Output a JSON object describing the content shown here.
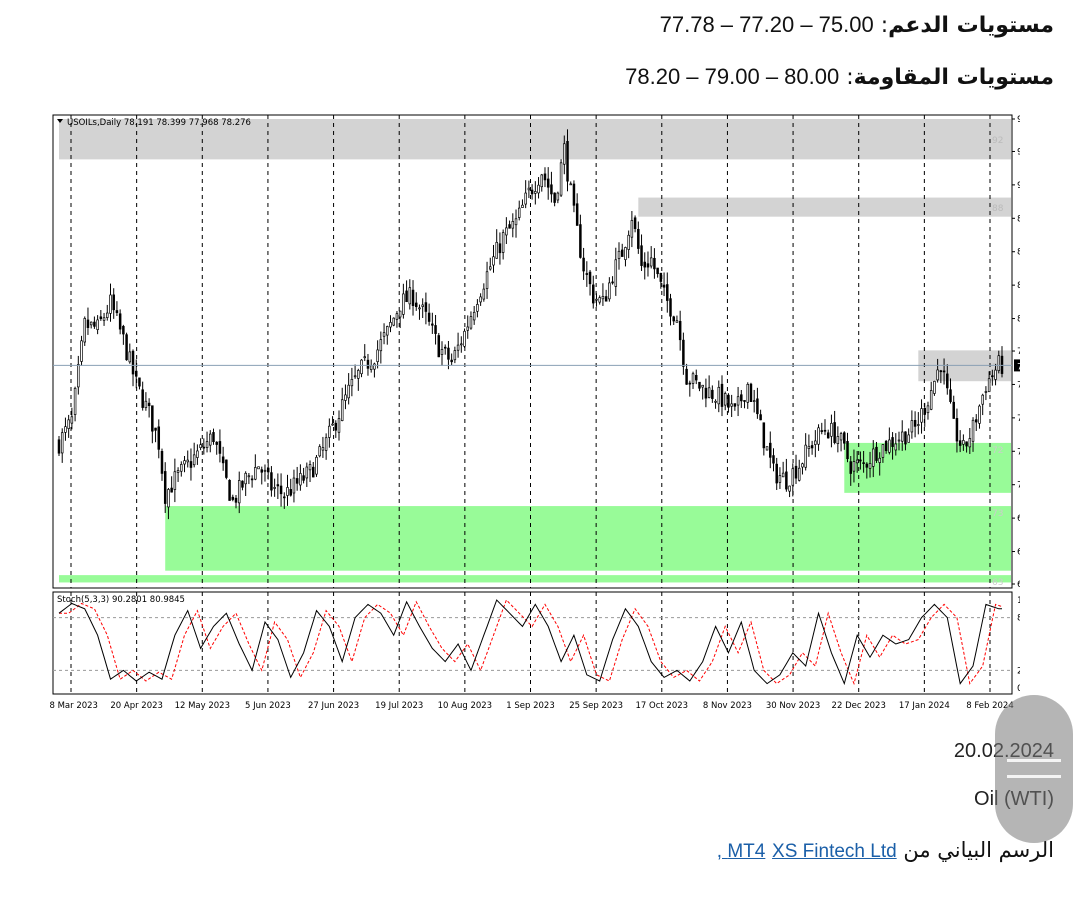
{
  "header": {
    "support_label": "مستويات الدعم",
    "support_values": "77.78 – 77.20 – 75.00",
    "resistance_label": "مستويات المقاومة",
    "resistance_values": "78.20 – 79.00 – 80.00"
  },
  "footer": {
    "date": "20.02.2024",
    "asset": "Oil (WTI)",
    "source_prefix": "الرسم البياني من",
    "source_link_1": "XS Fintech Ltd ,",
    "source_link_2": "MT4"
  },
  "colors": {
    "resistance_zone": "#d3d3d3",
    "support_zone": "#98fb98",
    "candle": "#000000",
    "stoch_main": "#000000",
    "stoch_signal": "#ff0000",
    "background": "#ffffff"
  },
  "chart_data": {
    "type": "candlestick",
    "symbol_label": "USOILs,Daily",
    "ohlc_header": "78.191 78.399 77.968 78.276",
    "current_price_label": "78.276",
    "last_close": 78.276,
    "ylim": [
      63.395,
      95.05
    ],
    "yticks": [
      "95.050",
      "92.840",
      "90.565",
      "88.290",
      "86.015",
      "83.740",
      "81.465",
      "79.255",
      "76.980",
      "74.705",
      "72.430",
      "70.155",
      "67.880",
      "65.605",
      "63.395"
    ],
    "xticks": [
      "28 Mar 2023",
      "20 Apr 2023",
      "12 May 2023",
      "5 Jun 2023",
      "27 Jun 2023",
      "19 Jul 2023",
      "10 Aug 2023",
      "1 Sep 2023",
      "25 Sep 2023",
      "17 Oct 2023",
      "8 Nov 2023",
      "30 Nov 2023",
      "22 Dec 2023",
      "17 Jan 2024",
      "8 Feb 2024"
    ],
    "close_path": [
      [
        0,
        73.0
      ],
      [
        4,
        74.5
      ],
      [
        8,
        81.0
      ],
      [
        12,
        80.8
      ],
      [
        16,
        82.5
      ],
      [
        20,
        80.0
      ],
      [
        24,
        77.0
      ],
      [
        28,
        75.0
      ],
      [
        31,
        73.0
      ],
      [
        33,
        69.5
      ],
      [
        36,
        70.5
      ],
      [
        40,
        71.5
      ],
      [
        44,
        72.5
      ],
      [
        48,
        73.5
      ],
      [
        51,
        71.0
      ],
      [
        54,
        69.0
      ],
      [
        58,
        70.5
      ],
      [
        62,
        71.5
      ],
      [
        66,
        70.0
      ],
      [
        70,
        69.5
      ],
      [
        74,
        70.2
      ],
      [
        78,
        71.0
      ],
      [
        82,
        72.5
      ],
      [
        86,
        74.5
      ],
      [
        90,
        76.5
      ],
      [
        94,
        78.0
      ],
      [
        98,
        79.0
      ],
      [
        102,
        80.5
      ],
      [
        106,
        82.5
      ],
      [
        110,
        83.0
      ],
      [
        114,
        81.5
      ],
      [
        118,
        79.5
      ],
      [
        122,
        78.5
      ],
      [
        126,
        80.5
      ],
      [
        130,
        83.0
      ],
      [
        134,
        85.0
      ],
      [
        138,
        87.0
      ],
      [
        142,
        88.0
      ],
      [
        146,
        90.0
      ],
      [
        150,
        91.5
      ],
      [
        154,
        89.5
      ],
      [
        157,
        93.0
      ],
      [
        160,
        88.5
      ],
      [
        163,
        85.0
      ],
      [
        166,
        83.0
      ],
      [
        169,
        82.5
      ],
      [
        172,
        84.5
      ],
      [
        175,
        86.0
      ],
      [
        178,
        88.5
      ],
      [
        181,
        85.0
      ],
      [
        184,
        85.5
      ],
      [
        188,
        83.0
      ],
      [
        192,
        81.5
      ],
      [
        195,
        77.5
      ],
      [
        198,
        77.0
      ],
      [
        202,
        76.5
      ],
      [
        206,
        76.0
      ],
      [
        210,
        75.0
      ],
      [
        214,
        77.0
      ],
      [
        218,
        74.0
      ],
      [
        222,
        71.0
      ],
      [
        226,
        70.5
      ],
      [
        230,
        71.5
      ],
      [
        234,
        73.0
      ],
      [
        238,
        74.0
      ],
      [
        242,
        73.5
      ],
      [
        246,
        71.5
      ],
      [
        250,
        71.5
      ],
      [
        254,
        72.5
      ],
      [
        258,
        73.0
      ],
      [
        262,
        73.5
      ],
      [
        266,
        74.0
      ],
      [
        270,
        76.0
      ],
      [
        274,
        78.5
      ],
      [
        278,
        74.0
      ],
      [
        281,
        72.5
      ],
      [
        284,
        74.0
      ],
      [
        288,
        77.0
      ],
      [
        292,
        78.276
      ]
    ],
    "resistance_zones": [
      {
        "from_index": 0,
        "y_low": 92.3,
        "y_high": 95.05,
        "label": "92"
      },
      {
        "from_index": 180,
        "y_low": 88.4,
        "y_high": 89.7,
        "label": "88"
      },
      {
        "from_index": 267,
        "y_low": 77.2,
        "y_high": 79.3,
        "label": "76"
      }
    ],
    "support_zones": [
      {
        "from_index": 244,
        "y_low": 69.6,
        "y_high": 73.0,
        "label": "72"
      },
      {
        "from_index": 33,
        "y_low": 64.3,
        "y_high": 68.7,
        "label": "73"
      },
      {
        "from_index": 0,
        "y_low": 63.5,
        "y_high": 64.0,
        "label": "63"
      }
    ],
    "stochastic": {
      "label": "Stoch(5,3,3) 90.2801 80.9845",
      "main": 90.2801,
      "signal": 80.9845,
      "levels": [
        "100",
        "80",
        "20",
        "0"
      ],
      "main_path": [
        [
          0,
          85
        ],
        [
          4,
          96
        ],
        [
          8,
          90
        ],
        [
          12,
          60
        ],
        [
          16,
          10
        ],
        [
          20,
          20
        ],
        [
          24,
          8
        ],
        [
          28,
          18
        ],
        [
          32,
          10
        ],
        [
          36,
          60
        ],
        [
          40,
          88
        ],
        [
          44,
          45
        ],
        [
          48,
          70
        ],
        [
          52,
          85
        ],
        [
          56,
          50
        ],
        [
          60,
          20
        ],
        [
          64,
          75
        ],
        [
          68,
          55
        ],
        [
          72,
          12
        ],
        [
          76,
          40
        ],
        [
          80,
          88
        ],
        [
          84,
          70
        ],
        [
          88,
          30
        ],
        [
          92,
          80
        ],
        [
          96,
          95
        ],
        [
          100,
          85
        ],
        [
          104,
          60
        ],
        [
          108,
          98
        ],
        [
          112,
          70
        ],
        [
          116,
          45
        ],
        [
          120,
          30
        ],
        [
          124,
          50
        ],
        [
          128,
          20
        ],
        [
          132,
          60
        ],
        [
          136,
          100
        ],
        [
          140,
          85
        ],
        [
          144,
          70
        ],
        [
          148,
          95
        ],
        [
          152,
          70
        ],
        [
          156,
          30
        ],
        [
          160,
          60
        ],
        [
          164,
          15
        ],
        [
          168,
          8
        ],
        [
          172,
          55
        ],
        [
          176,
          90
        ],
        [
          180,
          70
        ],
        [
          184,
          30
        ],
        [
          188,
          12
        ],
        [
          192,
          20
        ],
        [
          196,
          8
        ],
        [
          200,
          30
        ],
        [
          204,
          70
        ],
        [
          208,
          40
        ],
        [
          212,
          75
        ],
        [
          216,
          20
        ],
        [
          220,
          5
        ],
        [
          224,
          15
        ],
        [
          228,
          40
        ],
        [
          232,
          25
        ],
        [
          236,
          85
        ],
        [
          240,
          40
        ],
        [
          244,
          5
        ],
        [
          248,
          60
        ],
        [
          252,
          35
        ],
        [
          256,
          60
        ],
        [
          260,
          50
        ],
        [
          264,
          55
        ],
        [
          268,
          80
        ],
        [
          272,
          95
        ],
        [
          276,
          80
        ],
        [
          280,
          5
        ],
        [
          284,
          25
        ],
        [
          288,
          95
        ],
        [
          292,
          90
        ]
      ]
    }
  }
}
